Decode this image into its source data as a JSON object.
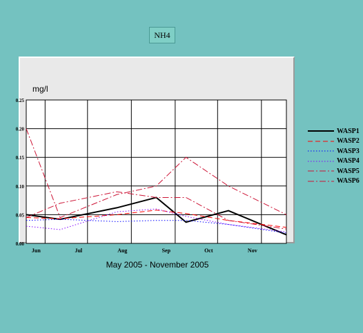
{
  "title": "NH4",
  "chart_data": {
    "type": "line",
    "ylabel": "mg/l",
    "xlabel": "May 2005 - November 2005",
    "x_ticks": [
      "Jun",
      "Jul",
      "Aug",
      "Sep",
      "Oct",
      "Nov"
    ],
    "y_ticks": [
      "0.00",
      "0.05",
      "0.10",
      "0.15",
      "0.20",
      "0.25"
    ],
    "ylim": [
      0,
      0.25
    ],
    "x": [
      "May 25",
      "Jun 25",
      "Jul 25",
      "Aug 25",
      "Sep 25",
      "Oct 25",
      "Nov 25"
    ],
    "grid": true,
    "legend_position": "right",
    "series": [
      {
        "name": "WASP1",
        "color": "#000000",
        "style": "solid",
        "x_values": [
          "2005-05-25",
          "2005-06-18",
          "2005-07-28",
          "2005-08-25",
          "2005-09-15",
          "2005-10-15",
          "2005-11-25"
        ],
        "values": [
          0.05,
          0.042,
          0.062,
          0.08,
          0.037,
          0.057,
          0.015
        ]
      },
      {
        "name": "WASP2",
        "color": "#ff0000",
        "style": "dashed",
        "x_values": [
          "2005-05-25",
          "2005-06-18",
          "2005-07-28",
          "2005-08-25",
          "2005-09-15",
          "2005-10-15",
          "2005-11-25"
        ],
        "values": [
          0.045,
          0.043,
          0.05,
          0.058,
          0.052,
          0.04,
          0.028
        ]
      },
      {
        "name": "WASP3",
        "color": "#0000ff",
        "style": "dotted",
        "x_values": [
          "2005-05-25",
          "2005-06-18",
          "2005-07-28",
          "2005-08-25",
          "2005-09-15",
          "2005-10-15",
          "2005-11-25"
        ],
        "values": [
          0.04,
          0.042,
          0.038,
          0.04,
          0.04,
          0.033,
          0.018
        ]
      },
      {
        "name": "WASP4",
        "color": "#8000ff",
        "style": "dotted",
        "x_values": [
          "2005-05-25",
          "2005-06-18",
          "2005-07-28",
          "2005-08-25",
          "2005-09-15",
          "2005-10-15",
          "2005-11-25"
        ],
        "values": [
          0.03,
          0.024,
          0.055,
          0.06,
          0.047,
          0.033,
          0.02
        ]
      },
      {
        "name": "WASP5",
        "color": "#cc1133",
        "style": "dashdot",
        "x_values": [
          "2005-05-25",
          "2005-06-18",
          "2005-07-28",
          "2005-08-25",
          "2005-09-15",
          "2005-10-15",
          "2005-11-25"
        ],
        "values": [
          0.045,
          0.07,
          0.09,
          0.08,
          0.08,
          0.04,
          0.025
        ]
      },
      {
        "name": "WASP6",
        "color": "#cc1133",
        "style": "dashdot",
        "x_values": [
          "2005-05-25",
          "2005-06-18",
          "2005-07-28",
          "2005-08-25",
          "2005-09-15",
          "2005-10-15",
          "2005-11-25"
        ],
        "values": [
          0.2,
          0.045,
          0.085,
          0.1,
          0.15,
          0.1,
          0.05
        ]
      }
    ]
  }
}
